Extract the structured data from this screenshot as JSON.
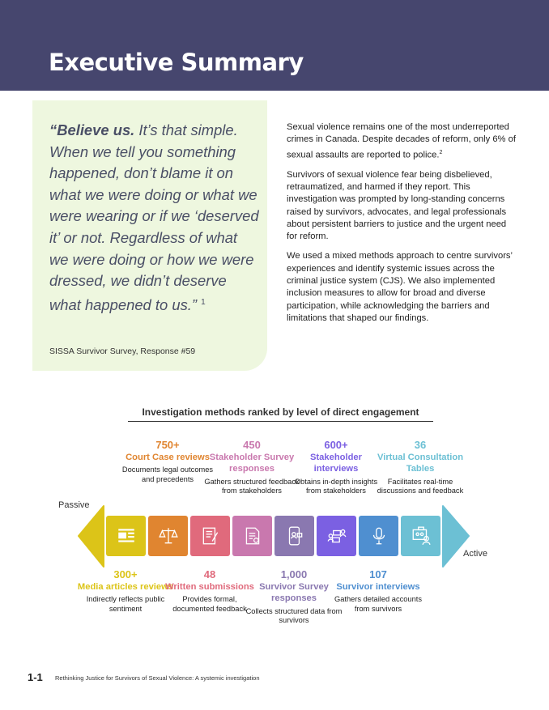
{
  "header": {
    "title": "Executive Summary"
  },
  "quote": {
    "bold": "“Believe us.",
    "text": " It’s that simple. When we tell you something happened, don’t blame it on what we were doing or what we were wearing or if we ‘deserved it’ or not. Regardless of what we were doing or how we were dressed, we didn’t deserve what happened to us.”",
    "footnote": "1",
    "source": "SISSA Survivor Survey, Response #59"
  },
  "body": {
    "p1": "Sexual violence remains one of the most underreported crimes in Canada. Despite decades of reform, only 6% of sexual assaults are reported to police.",
    "p1_footnote": "2",
    "p2": "Survivors of sexual violence fear being disbelieved, retraumatized, and harmed if they report. This investigation was prompted by long-standing concerns raised by survivors, advocates, and legal professionals about persistent barriers to justice and the urgent need for reform.",
    "p3": "We used a mixed methods approach to centre survivors’ experiences and identify systemic issues across the criminal justice system (CJS). We also implemented inclusion measures to allow for broad and diverse participation, while acknowledging the barriers and limitations that shaped our findings."
  },
  "diagram": {
    "title": "Investigation methods ranked by level of direct engagement",
    "passive": "Passive",
    "active": "Active",
    "methods": [
      {
        "num": "300+",
        "label": "Media articles reviews",
        "desc": "Indirectly reflects public sentiment",
        "color": "#dcc418",
        "icon": "newspaper-icon",
        "pos": "bottom"
      },
      {
        "num": "750+",
        "label": "Court Case reviews",
        "desc": "Documents legal outcomes and precedents",
        "color": "#e08530",
        "icon": "scales-icon",
        "pos": "top"
      },
      {
        "num": "48",
        "label": "Written submissions",
        "desc": "Provides formal, documented feedback",
        "color": "#e06a7c",
        "icon": "document-pen-icon",
        "pos": "bottom"
      },
      {
        "num": "450",
        "label": "Stakeholder Survey responses",
        "desc": "Gathers structured feedback from stakeholders",
        "color": "#c978ae",
        "icon": "survey-form-icon",
        "pos": "top"
      },
      {
        "num": "1,000",
        "label": "Survivor Survey responses",
        "desc": "Collects structured data from survivors",
        "color": "#8a78b0",
        "icon": "phone-video-icon",
        "pos": "bottom"
      },
      {
        "num": "600+",
        "label": "Stakeholder interviews",
        "desc": "Obtains in-depth insights from stakeholders",
        "color": "#7b60e2",
        "icon": "conversation-icon",
        "pos": "top"
      },
      {
        "num": "107",
        "label": "Survivor interviews",
        "desc": "Gathers detailed accounts from survivors",
        "color": "#4f8fd0",
        "icon": "microphone-icon",
        "pos": "bottom"
      },
      {
        "num": "36",
        "label": "Virtual Consultation Tables",
        "desc": "Facilitates real-time discussions and feedback",
        "color": "#6cc0d4",
        "icon": "virtual-meeting-icon",
        "pos": "top"
      }
    ]
  },
  "footer": {
    "page": "1-1",
    "title": "Rethinking Justice for Survivors of Sexual Violence: A systemic investigation"
  }
}
